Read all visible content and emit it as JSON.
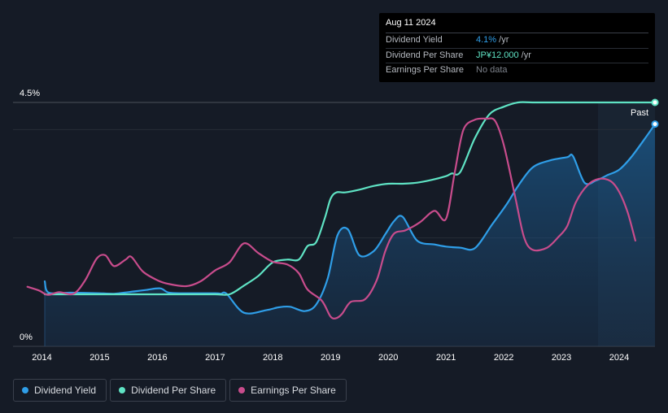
{
  "tooltip": {
    "date": "Aug 11 2024",
    "rows": [
      {
        "label": "Dividend Yield",
        "value": "4.1%",
        "unit": " /yr",
        "color": "#2f9ee8"
      },
      {
        "label": "Dividend Per Share",
        "value": "JP¥12.000",
        "unit": " /yr",
        "color": "#5fe3c4"
      },
      {
        "label": "Earnings Per Share",
        "value": "No data",
        "unit": "",
        "color": "#7d828b"
      }
    ]
  },
  "legend": [
    {
      "label": "Dividend Yield",
      "color": "#2f9ee8"
    },
    {
      "label": "Dividend Per Share",
      "color": "#5fe3c4"
    },
    {
      "label": "Earnings Per Share",
      "color": "#c84c8c"
    }
  ],
  "chart_data": {
    "type": "line",
    "title": "",
    "xlabel": "",
    "ylabel": "",
    "ylim": [
      0,
      4.5
    ],
    "xlim": [
      2013.5,
      2024.62
    ],
    "y_tick_labels": [
      "0%",
      "4.5%"
    ],
    "x_tick_labels": [
      "2014",
      "2015",
      "2016",
      "2017",
      "2018",
      "2019",
      "2020",
      "2021",
      "2022",
      "2023",
      "2024"
    ],
    "past_label": "Past",
    "past_region_start": 2023.6,
    "grid": true,
    "legend_position": "bottom-left",
    "series": [
      {
        "name": "Dividend Yield",
        "color": "#2f9ee8",
        "area": true,
        "x": [
          2014.05,
          2014.12,
          2014.5,
          2015.0,
          2015.25,
          2015.5,
          2015.8,
          2016.05,
          2016.2,
          2016.5,
          2017.0,
          2017.1,
          2017.2,
          2017.5,
          2017.9,
          2018.1,
          2018.3,
          2018.55,
          2018.75,
          2018.95,
          2019.12,
          2019.3,
          2019.5,
          2019.75,
          2019.95,
          2020.1,
          2020.25,
          2020.5,
          2020.8,
          2021.0,
          2021.25,
          2021.5,
          2021.8,
          2022.05,
          2022.25,
          2022.5,
          2022.8,
          2023.1,
          2023.2,
          2023.4,
          2023.6,
          2023.8,
          2024.0,
          2024.2,
          2024.45,
          2024.62
        ],
        "y": [
          1.2,
          0.99,
          0.99,
          0.98,
          0.97,
          1.0,
          1.04,
          1.07,
          0.99,
          0.98,
          0.98,
          0.97,
          0.97,
          0.62,
          0.67,
          0.72,
          0.73,
          0.65,
          0.77,
          1.25,
          2.05,
          2.16,
          1.68,
          1.76,
          2.07,
          2.31,
          2.39,
          1.95,
          1.88,
          1.84,
          1.82,
          1.81,
          2.25,
          2.62,
          2.96,
          3.3,
          3.43,
          3.49,
          3.51,
          3.02,
          3.06,
          3.16,
          3.26,
          3.48,
          3.84,
          4.1
        ]
      },
      {
        "name": "Dividend Per Share",
        "color": "#5fe3c4",
        "area": false,
        "x": [
          2014.05,
          2014.5,
          2015.0,
          2015.5,
          2016.0,
          2016.5,
          2017.0,
          2017.25,
          2017.5,
          2017.75,
          2018.0,
          2018.25,
          2018.45,
          2018.6,
          2018.75,
          2018.9,
          2019.0,
          2019.1,
          2019.25,
          2019.5,
          2019.75,
          2020.0,
          2020.25,
          2020.5,
          2020.75,
          2021.0,
          2021.1,
          2021.25,
          2021.5,
          2021.75,
          2022.0,
          2022.25,
          2022.5,
          2023.0,
          2023.5,
          2024.0,
          2024.62
        ],
        "y": [
          0.96,
          0.96,
          0.96,
          0.96,
          0.96,
          0.96,
          0.96,
          0.96,
          1.12,
          1.3,
          1.55,
          1.6,
          1.6,
          1.85,
          1.92,
          2.36,
          2.72,
          2.84,
          2.84,
          2.89,
          2.96,
          3.0,
          3.0,
          3.02,
          3.07,
          3.14,
          3.19,
          3.22,
          3.84,
          4.28,
          4.42,
          4.5,
          4.5,
          4.5,
          4.5,
          4.5,
          4.5
        ]
      },
      {
        "name": "Earnings Per Share",
        "color": "#c84c8c",
        "area": false,
        "x": [
          2013.75,
          2013.95,
          2014.1,
          2014.3,
          2014.55,
          2014.75,
          2014.95,
          2015.1,
          2015.25,
          2015.45,
          2015.55,
          2015.75,
          2016.0,
          2016.2,
          2016.5,
          2016.75,
          2017.0,
          2017.25,
          2017.5,
          2017.75,
          2018.0,
          2018.25,
          2018.45,
          2018.6,
          2018.85,
          2019.0,
          2019.1,
          2019.2,
          2019.35,
          2019.6,
          2019.8,
          2019.95,
          2020.1,
          2020.3,
          2020.55,
          2020.8,
          2021.0,
          2021.15,
          2021.3,
          2021.5,
          2021.7,
          2021.85,
          2022.0,
          2022.2,
          2022.35,
          2022.5,
          2022.75,
          2022.95,
          2023.1,
          2023.25,
          2023.45,
          2023.65,
          2023.85,
          2024.0,
          2024.15,
          2024.28
        ],
        "y": [
          1.1,
          1.03,
          0.95,
          1.0,
          0.97,
          1.22,
          1.62,
          1.68,
          1.48,
          1.6,
          1.65,
          1.38,
          1.22,
          1.15,
          1.11,
          1.2,
          1.4,
          1.55,
          1.9,
          1.72,
          1.56,
          1.51,
          1.35,
          1.05,
          0.84,
          0.55,
          0.52,
          0.6,
          0.82,
          0.87,
          1.22,
          1.76,
          2.08,
          2.14,
          2.29,
          2.5,
          2.35,
          3.2,
          3.99,
          4.18,
          4.2,
          4.16,
          3.72,
          2.75,
          2.02,
          1.78,
          1.82,
          2.02,
          2.22,
          2.66,
          2.97,
          3.09,
          3.05,
          2.85,
          2.46,
          1.95
        ]
      }
    ]
  }
}
